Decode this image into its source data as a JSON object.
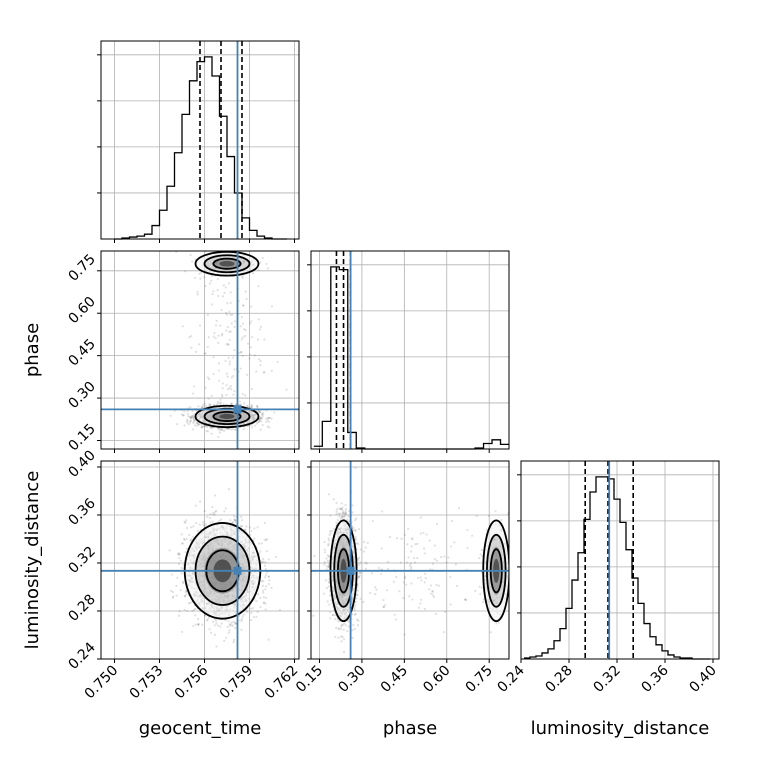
{
  "chart_data": {
    "type": "corner",
    "colors": {
      "truth": "#4682b4",
      "hist": "#000000",
      "grid": "#b0b0b0",
      "points": "#555555"
    },
    "parameters": [
      {
        "name": "geocent_time",
        "label": "geocent_time",
        "range": [
          0.7491,
          0.7623
        ],
        "ticks": [
          0.75,
          0.753,
          0.756,
          0.759,
          0.762
        ],
        "tick_labels": [
          "0.750",
          "0.753",
          "0.756",
          "0.759",
          "0.762"
        ],
        "truth": 0.7582,
        "quantiles": [
          0.7557,
          0.7571,
          0.7585
        ]
      },
      {
        "name": "phase",
        "label": "phase",
        "range": [
          0.12,
          0.82
        ],
        "ticks": [
          0.15,
          0.3,
          0.45,
          0.6,
          0.75
        ],
        "tick_labels": [
          "0.15",
          "0.30",
          "0.45",
          "0.60",
          "0.75"
        ],
        "truth": 0.26,
        "quantiles": [
          0.21,
          0.235,
          0.26
        ]
      },
      {
        "name": "luminosity_distance",
        "label": "luminosity_distance",
        "range": [
          0.24,
          0.405
        ],
        "ticks": [
          0.24,
          0.28,
          0.32,
          0.36,
          0.4
        ],
        "tick_labels": [
          "0.24",
          "0.28",
          "0.32",
          "0.36",
          "0.40"
        ],
        "truth": 0.3135,
        "quantiles": [
          0.2935,
          0.3125,
          0.3335
        ]
      }
    ],
    "histograms": {
      "geocent_time": {
        "edges": [
          0.75,
          0.7505,
          0.751,
          0.7515,
          0.752,
          0.7525,
          0.753,
          0.7535,
          0.754,
          0.7545,
          0.755,
          0.7555,
          0.756,
          0.7565,
          0.757,
          0.7575,
          0.758,
          0.7585,
          0.759,
          0.7595,
          0.76,
          0.7605,
          0.761,
          0.7615
        ],
        "counts": [
          0,
          1,
          2,
          3,
          5,
          14,
          30,
          55,
          90,
          130,
          165,
          185,
          190,
          170,
          128,
          86,
          48,
          22,
          9,
          3,
          1,
          0,
          0
        ]
      },
      "phase": {
        "edges": [
          0.13,
          0.16,
          0.19,
          0.22,
          0.25,
          0.28,
          0.31,
          0.34,
          0.37,
          0.4,
          0.43,
          0.46,
          0.49,
          0.52,
          0.55,
          0.58,
          0.61,
          0.64,
          0.67,
          0.7,
          0.73,
          0.76,
          0.79,
          0.82
        ],
        "counts": [
          3,
          30,
          198,
          195,
          18,
          1,
          0,
          0,
          0,
          0,
          0,
          0,
          0,
          0,
          0,
          0,
          0,
          0,
          0,
          1,
          6,
          10,
          5
        ]
      },
      "luminosity_distance": {
        "edges": [
          0.2425,
          0.2475,
          0.2525,
          0.2575,
          0.2625,
          0.2675,
          0.2725,
          0.2775,
          0.2825,
          0.2875,
          0.2925,
          0.2975,
          0.3025,
          0.3075,
          0.3125,
          0.3175,
          0.3225,
          0.3275,
          0.3325,
          0.3375,
          0.3425,
          0.3475,
          0.3525,
          0.3575,
          0.3625,
          0.3675,
          0.3725,
          0.3775,
          0.3825,
          0.3875,
          0.3925,
          0.3975
        ],
        "counts": [
          1,
          2,
          3,
          6,
          10,
          18,
          30,
          50,
          78,
          105,
          138,
          165,
          180,
          180,
          178,
          158,
          135,
          108,
          80,
          55,
          35,
          22,
          14,
          8,
          4,
          2,
          1,
          1,
          0,
          0,
          0
        ]
      }
    },
    "scatter_2d": [
      {
        "x": "geocent_time",
        "y": "phase",
        "clusters": [
          {
            "cx": 0.7575,
            "cy": 0.235,
            "sx": 0.001,
            "sy": 0.018,
            "weight": 0.82
          },
          {
            "cx": 0.7575,
            "cy": 0.775,
            "sx": 0.001,
            "sy": 0.02,
            "weight": 0.1
          },
          {
            "cx": 0.7575,
            "cy": 0.5,
            "sx": 0.0012,
            "sy": 0.17,
            "weight": 0.08
          }
        ]
      },
      {
        "x": "geocent_time",
        "y": "luminosity_distance",
        "clusters": [
          {
            "cx": 0.7572,
            "cy": 0.3135,
            "sx": 0.0012,
            "sy": 0.019,
            "weight": 1.0
          }
        ]
      },
      {
        "x": "phase",
        "y": "luminosity_distance",
        "clusters": [
          {
            "cx": 0.235,
            "cy": 0.3135,
            "sx": 0.022,
            "sy": 0.02,
            "weight": 0.83
          },
          {
            "cx": 0.775,
            "cy": 0.3135,
            "sx": 0.022,
            "sy": 0.02,
            "weight": 0.1
          },
          {
            "cx": 0.5,
            "cy": 0.3135,
            "sx": 0.17,
            "sy": 0.022,
            "weight": 0.07
          }
        ]
      }
    ]
  }
}
